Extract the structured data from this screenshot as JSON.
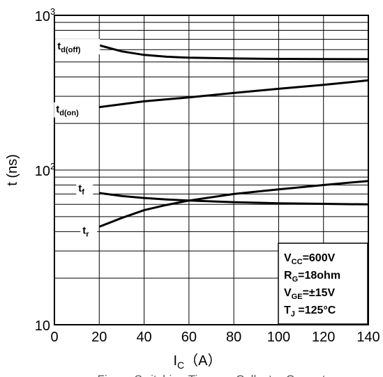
{
  "chart_data": {
    "type": "line",
    "title": "",
    "xlabel": "Ic (A)",
    "xlabel_main": "I",
    "xlabel_sub": "C",
    "xlabel_unit": "（A）",
    "ylabel": "t (ns)",
    "x_scale": "linear",
    "y_scale": "log",
    "xlim": [
      0,
      140
    ],
    "ylim": [
      10,
      1000
    ],
    "grid": true,
    "x_ticks": [
      0,
      20,
      40,
      60,
      80,
      100,
      120,
      140
    ],
    "y_ticks": [
      {
        "value": 10,
        "base": "10",
        "exp": ""
      },
      {
        "value": 100,
        "base": "10",
        "exp": "2"
      },
      {
        "value": 1000,
        "base": "10",
        "exp": "3"
      }
    ],
    "series": [
      {
        "label_main": "t",
        "label_sub": "d(off)",
        "x": [
          20,
          30,
          40,
          50,
          60,
          80,
          100,
          120,
          140
        ],
        "y": [
          640,
          585,
          555,
          540,
          532,
          526,
          523,
          522,
          521
        ]
      },
      {
        "label_main": "t",
        "label_sub": "d(on)",
        "x": [
          20,
          40,
          60,
          80,
          100,
          120,
          140
        ],
        "y": [
          255,
          278,
          295,
          315,
          335,
          355,
          380
        ]
      },
      {
        "label_main": "t",
        "label_sub": "f",
        "x": [
          20,
          30,
          40,
          50,
          60,
          80,
          100,
          120,
          140
        ],
        "y": [
          71,
          68,
          66,
          64.5,
          63.5,
          62,
          61,
          60.5,
          60
        ]
      },
      {
        "label_main": "t",
        "label_sub": "r",
        "x": [
          20,
          30,
          40,
          50,
          60,
          80,
          100,
          120,
          140
        ],
        "y": [
          43,
          49,
          55,
          59.5,
          63.5,
          70,
          75,
          80,
          85
        ]
      }
    ],
    "legend_box": {
      "placement": "bottom-right",
      "lines": [
        {
          "main": "V",
          "sub": "CC",
          "rest": "=600V"
        },
        {
          "main": "R",
          "sub": "G",
          "rest": "=18ohm"
        },
        {
          "main": "V",
          "sub": "GE",
          "rest": "=±15V"
        },
        {
          "main": "T",
          "sub": "J",
          "rest": " =125°C"
        }
      ]
    }
  },
  "caption": "Figure   Switching Time vs. Collector Current"
}
